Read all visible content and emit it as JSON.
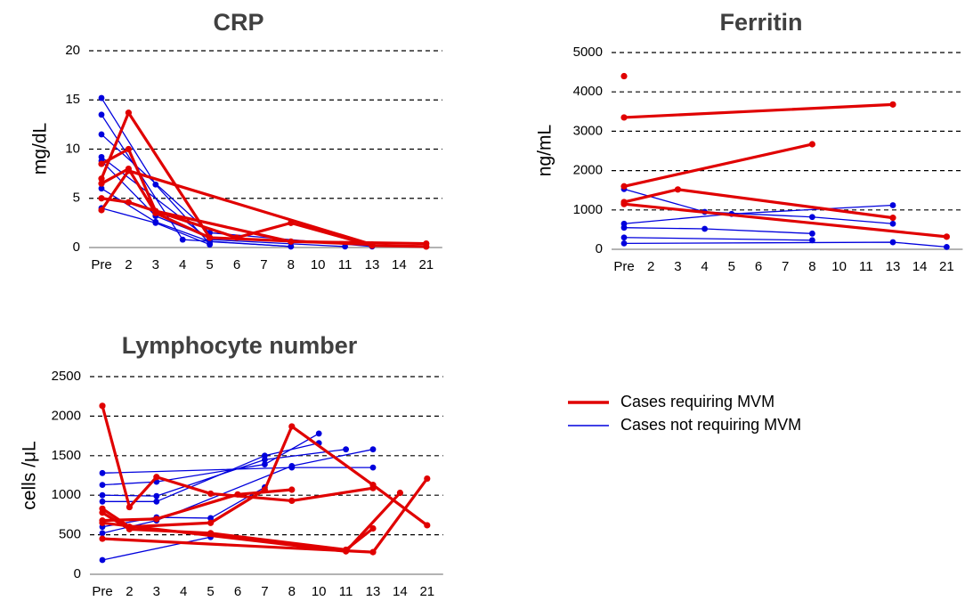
{
  "colors": {
    "mvm": "#e00000",
    "non_mvm": "#0000dd",
    "grid": "#000000",
    "axis": "#9a9a9a",
    "title": "#404040"
  },
  "legend": {
    "entries": [
      {
        "label": "Cases requiring MVM",
        "series": "mvm"
      },
      {
        "label": "Cases not requiring MVM",
        "series": "non_mvm"
      }
    ]
  },
  "chart_data": [
    {
      "id": "crp",
      "type": "line",
      "title": "CRP",
      "ylabel": "mg/dL",
      "ylim": [
        0,
        20
      ],
      "yticks": [
        0,
        5,
        10,
        15,
        20
      ],
      "grid": true,
      "categories": [
        "Pre",
        "2",
        "3",
        "4",
        "5",
        "6",
        "7",
        "8",
        "10",
        "11",
        "13",
        "14",
        "21"
      ],
      "series": [
        {
          "group": "non_mvm",
          "points": [
            [
              "Pre",
              15.2
            ],
            [
              "3",
              6.4
            ],
            [
              "5",
              0.4
            ]
          ]
        },
        {
          "group": "non_mvm",
          "points": [
            [
              "Pre",
              13.5
            ],
            [
              "4",
              0.8
            ],
            [
              "8",
              0.1
            ]
          ]
        },
        {
          "group": "non_mvm",
          "points": [
            [
              "Pre",
              11.5
            ],
            [
              "5",
              1.5
            ],
            [
              "13",
              0.1
            ]
          ]
        },
        {
          "group": "non_mvm",
          "points": [
            [
              "Pre",
              9.2
            ],
            [
              "5",
              0.8
            ],
            [
              "11",
              0.1
            ]
          ]
        },
        {
          "group": "non_mvm",
          "points": [
            [
              "Pre",
              8.8
            ],
            [
              "3",
              3.2
            ],
            [
              "5",
              1.0
            ]
          ]
        },
        {
          "group": "non_mvm",
          "points": [
            [
              "Pre",
              6.0
            ],
            [
              "3",
              2.6
            ],
            [
              "5",
              0.6
            ],
            [
              "8",
              0.1
            ]
          ]
        },
        {
          "group": "non_mvm",
          "points": [
            [
              "Pre",
              4.0
            ],
            [
              "3",
              2.5
            ],
            [
              "5",
              0.3
            ]
          ]
        },
        {
          "group": "mvm",
          "points": [
            [
              "Pre",
              7.0
            ],
            [
              "2",
              13.7
            ],
            [
              "5",
              1.0
            ],
            [
              "13",
              0.3
            ]
          ]
        },
        {
          "group": "mvm",
          "points": [
            [
              "Pre",
              8.5
            ],
            [
              "2",
              10.0
            ],
            [
              "3",
              3.7
            ],
            [
              "8",
              0.6
            ],
            [
              "21",
              0.4
            ]
          ]
        },
        {
          "group": "mvm",
          "points": [
            [
              "Pre",
              3.8
            ],
            [
              "2",
              7.8
            ],
            [
              "13",
              0.3
            ]
          ]
        },
        {
          "group": "mvm",
          "points": [
            [
              "Pre",
              5.0
            ],
            [
              "2",
              4.6
            ],
            [
              "6",
              1.0
            ],
            [
              "8",
              2.5
            ],
            [
              "13",
              0.2
            ],
            [
              "21",
              0.1
            ]
          ]
        },
        {
          "group": "mvm",
          "points": [
            [
              "Pre",
              6.5
            ],
            [
              "2",
              8.0
            ],
            [
              "3",
              3.5
            ],
            [
              "5",
              1.0
            ]
          ]
        }
      ]
    },
    {
      "id": "ferritin",
      "type": "line",
      "title": "Ferritin",
      "ylabel": "ng/mL",
      "ylim": [
        0,
        5000
      ],
      "yticks": [
        0,
        1000,
        2000,
        3000,
        4000,
        5000
      ],
      "grid": true,
      "categories": [
        "Pre",
        "2",
        "3",
        "4",
        "5",
        "6",
        "7",
        "8",
        "10",
        "11",
        "13",
        "14",
        "21"
      ],
      "series": [
        {
          "group": "non_mvm",
          "points": [
            [
              "Pre",
              1530
            ],
            [
              "4",
              950
            ],
            [
              "8",
              820
            ],
            [
              "13",
              650
            ]
          ]
        },
        {
          "group": "non_mvm",
          "points": [
            [
              "Pre",
              650
            ],
            [
              "5",
              900
            ],
            [
              "13",
              1120
            ]
          ]
        },
        {
          "group": "non_mvm",
          "points": [
            [
              "Pre",
              550
            ],
            [
              "4",
              520
            ],
            [
              "8",
              400
            ]
          ]
        },
        {
          "group": "non_mvm",
          "points": [
            [
              "Pre",
              300
            ],
            [
              "8",
              230
            ]
          ]
        },
        {
          "group": "non_mvm",
          "points": [
            [
              "Pre",
              150
            ],
            [
              "13",
              180
            ],
            [
              "21",
              60
            ]
          ]
        },
        {
          "group": "mvm",
          "points": [
            [
              "Pre",
              4400
            ]
          ]
        },
        {
          "group": "mvm",
          "points": [
            [
              "Pre",
              3350
            ],
            [
              "13",
              3680
            ]
          ]
        },
        {
          "group": "mvm",
          "points": [
            [
              "Pre",
              1600
            ],
            [
              "8",
              2670
            ]
          ]
        },
        {
          "group": "mvm",
          "points": [
            [
              "Pre",
              1200
            ],
            [
              "3",
              1520
            ],
            [
              "13",
              800
            ]
          ]
        },
        {
          "group": "mvm",
          "points": [
            [
              "Pre",
              1150
            ],
            [
              "21",
              320
            ]
          ]
        }
      ]
    },
    {
      "id": "lymphocyte",
      "type": "line",
      "title": "Lymphocyte number",
      "ylabel": "cells /μL",
      "ylim": [
        0,
        2500
      ],
      "yticks": [
        0,
        500,
        1000,
        1500,
        2000,
        2500
      ],
      "grid": true,
      "categories": [
        "Pre",
        "2",
        "3",
        "4",
        "5",
        "6",
        "7",
        "8",
        "10",
        "11",
        "13",
        "14",
        "21"
      ],
      "series": [
        {
          "group": "non_mvm",
          "points": [
            [
              "Pre",
              1280
            ],
            [
              "8",
              1350
            ],
            [
              "13",
              1350
            ]
          ]
        },
        {
          "group": "non_mvm",
          "points": [
            [
              "Pre",
              1130
            ],
            [
              "3",
              1170
            ],
            [
              "7",
              1390
            ],
            [
              "10",
              1780
            ]
          ]
        },
        {
          "group": "non_mvm",
          "points": [
            [
              "Pre",
              1000
            ],
            [
              "3",
              990
            ],
            [
              "7",
              1450
            ],
            [
              "11",
              1580
            ]
          ]
        },
        {
          "group": "non_mvm",
          "points": [
            [
              "Pre",
              920
            ],
            [
              "3",
              920
            ],
            [
              "7",
              1500
            ],
            [
              "10",
              1660
            ]
          ]
        },
        {
          "group": "non_mvm",
          "points": [
            [
              "Pre",
              600
            ],
            [
              "3",
              720
            ],
            [
              "5",
              710
            ],
            [
              "7",
              1100
            ]
          ]
        },
        {
          "group": "non_mvm",
          "points": [
            [
              "Pre",
              520
            ],
            [
              "3",
              680
            ],
            [
              "8",
              1370
            ],
            [
              "13",
              1580
            ]
          ]
        },
        {
          "group": "non_mvm",
          "points": [
            [
              "Pre",
              180
            ],
            [
              "5",
              470
            ]
          ]
        },
        {
          "group": "mvm",
          "points": [
            [
              "Pre",
              2130
            ],
            [
              "2",
              850
            ],
            [
              "3",
              1230
            ],
            [
              "5",
              1020
            ],
            [
              "8",
              930
            ],
            [
              "13",
              1090
            ]
          ]
        },
        {
          "group": "mvm",
          "points": [
            [
              "Pre",
              830
            ],
            [
              "2",
              600
            ],
            [
              "5",
              650
            ],
            [
              "7",
              1070
            ],
            [
              "8",
              1870
            ],
            [
              "13",
              1130
            ],
            [
              "21",
              620
            ]
          ]
        },
        {
          "group": "mvm",
          "points": [
            [
              "Pre",
              680
            ],
            [
              "3",
              700
            ],
            [
              "6",
              1010
            ],
            [
              "8",
              1070
            ]
          ]
        },
        {
          "group": "mvm",
          "points": [
            [
              "Pre",
              650
            ],
            [
              "11",
              290
            ],
            [
              "14",
              1030
            ]
          ]
        },
        {
          "group": "mvm",
          "points": [
            [
              "Pre",
              450
            ],
            [
              "13",
              280
            ],
            [
              "21",
              1210
            ]
          ]
        },
        {
          "group": "mvm",
          "points": [
            [
              "Pre",
              780
            ],
            [
              "2",
              570
            ],
            [
              "5",
              520
            ],
            [
              "11",
              310
            ],
            [
              "13",
              580
            ]
          ]
        }
      ]
    }
  ]
}
